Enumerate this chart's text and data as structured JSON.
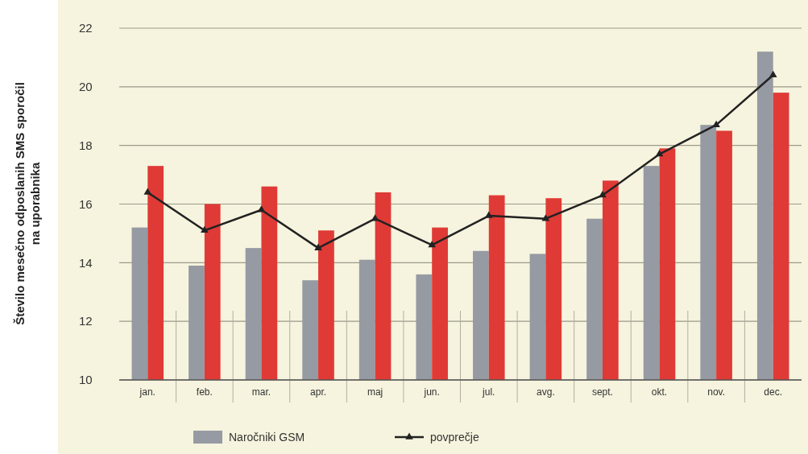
{
  "chart_data": {
    "type": "bar",
    "ylabel": "Število mesečno odposlanih SMS sporočil na uporabnika",
    "categories": [
      "jan.",
      "feb.",
      "mar.",
      "apr.",
      "maj",
      "jun.",
      "jul.",
      "avg.",
      "sept.",
      "okt.",
      "nov.",
      "dec."
    ],
    "series": [
      {
        "name": "Naročniki GSM",
        "color": "#959aa3",
        "values": [
          15.2,
          13.9,
          14.5,
          13.4,
          14.1,
          13.6,
          14.4,
          14.3,
          15.5,
          17.3,
          18.7,
          21.2
        ]
      },
      {
        "color": "#e03a36",
        "values": [
          17.3,
          16.0,
          16.6,
          15.1,
          16.4,
          15.2,
          16.3,
          16.2,
          16.8,
          17.9,
          18.5,
          19.8
        ]
      },
      {
        "name": "povprečje",
        "type": "line",
        "color": "#222222",
        "marker": "triangle",
        "values": [
          16.4,
          15.1,
          15.8,
          14.5,
          15.5,
          14.6,
          15.6,
          15.5,
          16.3,
          17.7,
          18.7,
          20.4
        ]
      }
    ],
    "ylim": [
      10,
      22
    ],
    "yticks": [
      10,
      12,
      14,
      16,
      18,
      20,
      22
    ],
    "grid": "y",
    "legend": "bottom"
  }
}
